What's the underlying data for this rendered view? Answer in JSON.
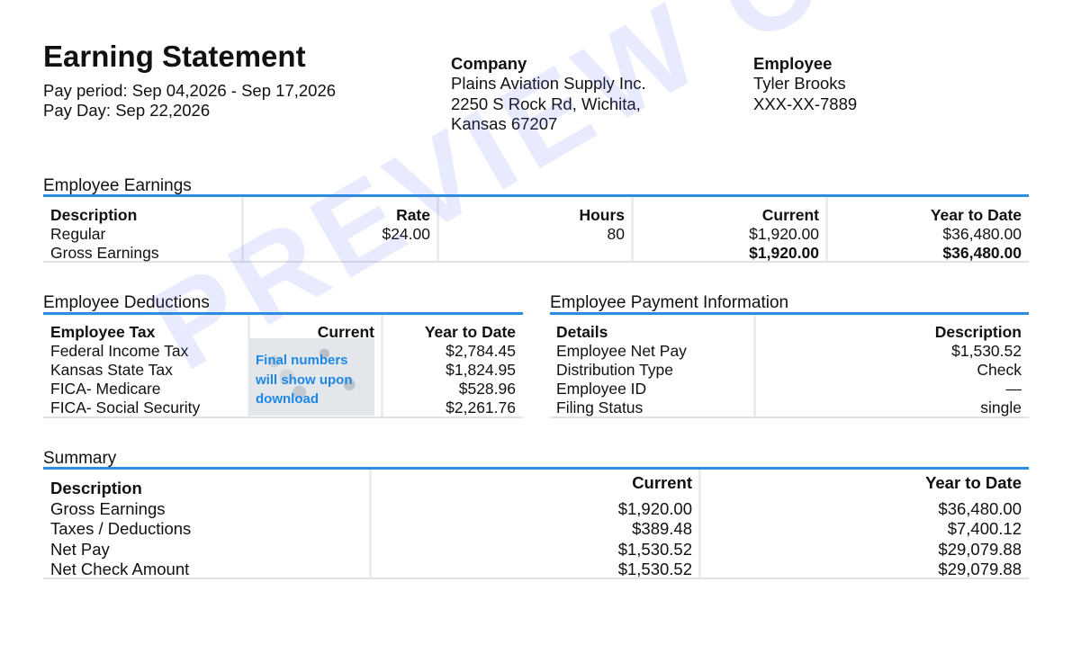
{
  "header": {
    "title": "Earning Statement",
    "pay_period": "Pay period: Sep 04,2026 - Sep 17,2026",
    "pay_day": "Pay Day: Sep 22,2026"
  },
  "company": {
    "label": "Company",
    "name": "Plains Aviation Supply Inc.",
    "address_line1": "2250 S Rock Rd, Wichita,",
    "address_line2": "Kansas 67207"
  },
  "employee": {
    "label": "Employee",
    "name": "Tyler Brooks",
    "ssn": "XXX-XX-7889"
  },
  "earnings": {
    "section_title": "Employee Earnings",
    "headers": [
      "Description",
      "Rate",
      "Hours",
      "Current",
      "Year to Date"
    ],
    "regular": [
      "Regular",
      "$24.00",
      "80",
      "$1,920.00",
      "$36,480.00"
    ],
    "gross": [
      "Gross Earnings",
      "",
      "",
      "$1,920.00",
      "$36,480.00"
    ]
  },
  "deductions": {
    "section_title": "Employee Deductions",
    "headers": [
      "Employee Tax",
      "Current",
      "Year to Date"
    ],
    "rows": [
      [
        "Federal Income Tax",
        "$2,784.45"
      ],
      [
        "Kansas State Tax",
        "$1,824.95"
      ],
      [
        "FICA- Medicare",
        "$528.96"
      ],
      [
        "FICA- Social Security",
        "$2,261.76"
      ]
    ],
    "blur_notice": "Final numbers will show upon download"
  },
  "payment": {
    "section_title": "Employee Payment Information",
    "headers": [
      "Details",
      "Description"
    ],
    "rows": [
      [
        "Employee Net Pay",
        "$1,530.52"
      ],
      [
        "Distribution Type",
        "Check"
      ],
      [
        "Employee ID",
        "—"
      ],
      [
        "Filing Status",
        "single"
      ]
    ]
  },
  "summary": {
    "section_title": "Summary",
    "headers": [
      "Description",
      "Current",
      "Year to Date"
    ],
    "rows": [
      [
        "Gross Earnings",
        "$1,920.00",
        "$36,480.00"
      ],
      [
        "Taxes / Deductions",
        "$389.48",
        "$7,400.12"
      ],
      [
        "Net Pay",
        "$1,530.52",
        "$29,079.88"
      ],
      [
        "Net Check Amount",
        "$1,530.52",
        "$29,079.88"
      ]
    ]
  },
  "watermark": "PREVIEW ONLY",
  "colors": {
    "accent_rule": "#2b8ee0",
    "blur_notice": "#1e88e5"
  }
}
